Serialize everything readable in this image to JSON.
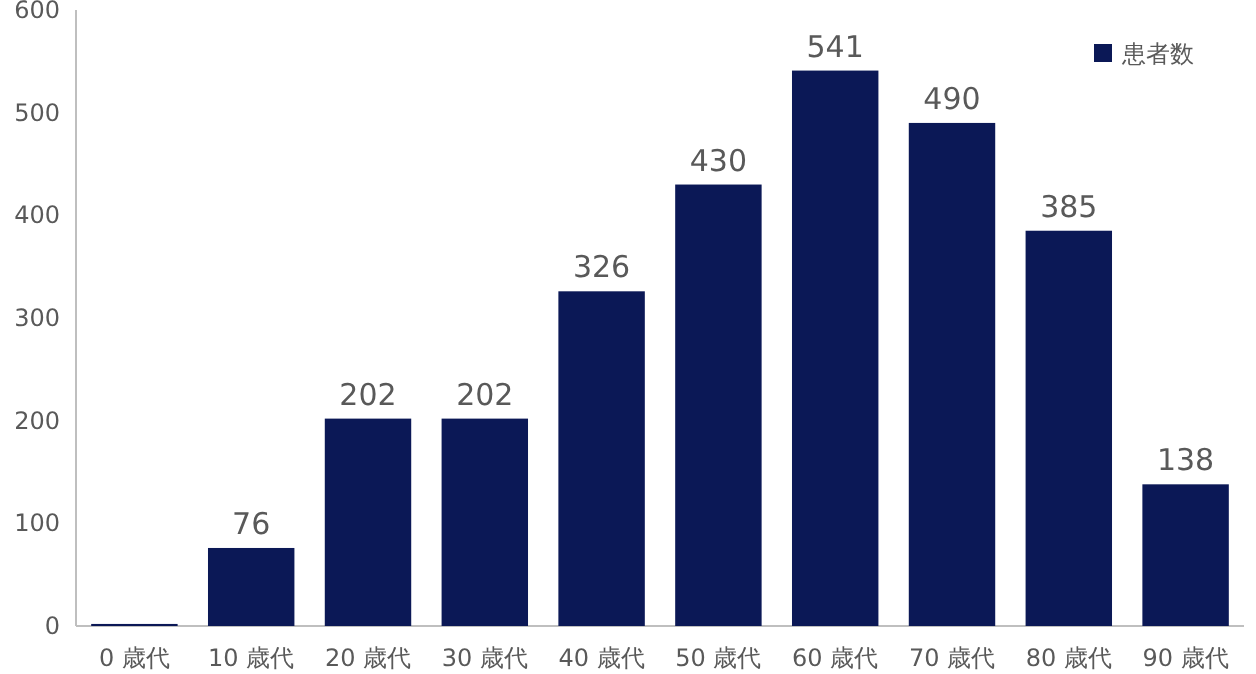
{
  "chart_data": {
    "type": "bar",
    "categories": [
      "0 歳代",
      "10 歳代",
      "20 歳代",
      "30 歳代",
      "40 歳代",
      "50 歳代",
      "60 歳代",
      "70 歳代",
      "80 歳代",
      "90 歳代"
    ],
    "series": [
      {
        "name": "患者数",
        "color": "#0b1856",
        "values": [
          2,
          76,
          202,
          202,
          326,
          430,
          541,
          490,
          385,
          138
        ],
        "value_labels": [
          null,
          "76",
          "202",
          "202",
          "326",
          "430",
          "541",
          "490",
          "385",
          "138"
        ]
      }
    ],
    "ylim": [
      0,
      600
    ],
    "yticks": [
      0,
      100,
      200,
      300,
      400,
      500,
      600
    ],
    "legend": "top right"
  }
}
